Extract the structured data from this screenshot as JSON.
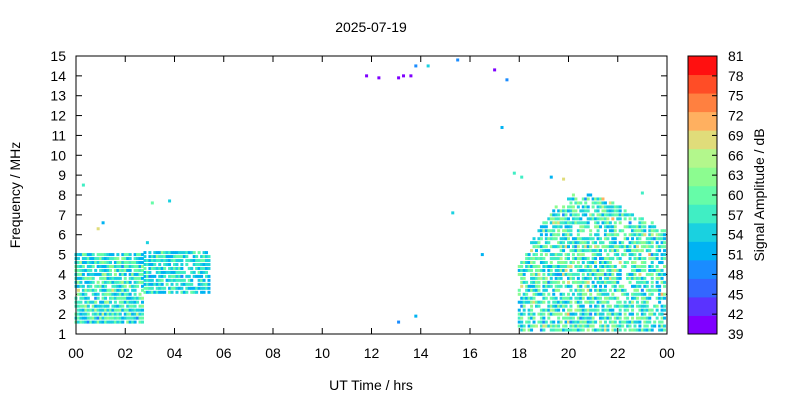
{
  "chart_data": {
    "type": "heatmap",
    "title": "2025-07-19",
    "xlabel": "UT Time / hrs",
    "ylabel": "Frequency / MHz",
    "colorbar_label": "Signal Amplitude / dB",
    "xlim": [
      0,
      24
    ],
    "ylim": [
      1,
      15
    ],
    "x_ticks": [
      "00",
      "02",
      "04",
      "06",
      "08",
      "10",
      "12",
      "14",
      "16",
      "18",
      "20",
      "22",
      "00"
    ],
    "y_ticks": [
      "1",
      "2",
      "3",
      "4",
      "5",
      "6",
      "7",
      "8",
      "9",
      "10",
      "11",
      "12",
      "13",
      "14",
      "15"
    ],
    "colorbar": {
      "range": [
        39,
        81
      ],
      "ticks": [
        "39",
        "42",
        "45",
        "48",
        "51",
        "54",
        "57",
        "60",
        "63",
        "66",
        "69",
        "72",
        "75",
        "78",
        "81"
      ],
      "colors": [
        "#7f00ff",
        "#5a33ff",
        "#3366ff",
        "#1a8cff",
        "#00b3f2",
        "#1ad1e0",
        "#40eec4",
        "#66fca8",
        "#8cfc90",
        "#b3f78c",
        "#e0dc7a",
        "#ffb060",
        "#ff8040",
        "#ff4d26",
        "#ff1010"
      ]
    },
    "grid": false,
    "clusters": [
      {
        "x": [
          0.0,
          2.8
        ],
        "y": [
          1.6,
          5.2
        ],
        "amp": [
          50,
          68
        ],
        "density": 0.85
      },
      {
        "x": [
          2.8,
          5.4
        ],
        "y": [
          3.1,
          5.3
        ],
        "amp": [
          50,
          64
        ],
        "density": 0.8
      },
      {
        "x": [
          18.0,
          24.0
        ],
        "y": [
          1.2,
          8.2
        ],
        "amp": [
          50,
          70
        ],
        "density": 0.7
      }
    ],
    "points": [
      {
        "x": 0.3,
        "y": 8.5,
        "amp": 56
      },
      {
        "x": 0.9,
        "y": 6.3,
        "amp": 69
      },
      {
        "x": 1.1,
        "y": 6.6,
        "amp": 52
      },
      {
        "x": 2.9,
        "y": 5.6,
        "amp": 55
      },
      {
        "x": 3.1,
        "y": 7.6,
        "amp": 59
      },
      {
        "x": 3.8,
        "y": 7.7,
        "amp": 54
      },
      {
        "x": 11.8,
        "y": 14.0,
        "amp": 40
      },
      {
        "x": 12.3,
        "y": 13.9,
        "amp": 40
      },
      {
        "x": 13.1,
        "y": 13.9,
        "amp": 40
      },
      {
        "x": 13.3,
        "y": 14.0,
        "amp": 40
      },
      {
        "x": 13.6,
        "y": 14.0,
        "amp": 40
      },
      {
        "x": 13.8,
        "y": 14.5,
        "amp": 48
      },
      {
        "x": 14.3,
        "y": 14.5,
        "amp": 54
      },
      {
        "x": 15.5,
        "y": 14.8,
        "amp": 48
      },
      {
        "x": 17.0,
        "y": 14.3,
        "amp": 40
      },
      {
        "x": 17.5,
        "y": 13.8,
        "amp": 48
      },
      {
        "x": 17.3,
        "y": 11.4,
        "amp": 52
      },
      {
        "x": 15.3,
        "y": 7.1,
        "amp": 54
      },
      {
        "x": 16.5,
        "y": 5.0,
        "amp": 52
      },
      {
        "x": 13.1,
        "y": 1.6,
        "amp": 50
      },
      {
        "x": 13.8,
        "y": 1.9,
        "amp": 52
      },
      {
        "x": 17.8,
        "y": 9.1,
        "amp": 56
      },
      {
        "x": 18.1,
        "y": 8.9,
        "amp": 57
      },
      {
        "x": 19.3,
        "y": 8.9,
        "amp": 52
      },
      {
        "x": 19.8,
        "y": 8.8,
        "amp": 68
      },
      {
        "x": 23.0,
        "y": 8.1,
        "amp": 57
      }
    ]
  }
}
